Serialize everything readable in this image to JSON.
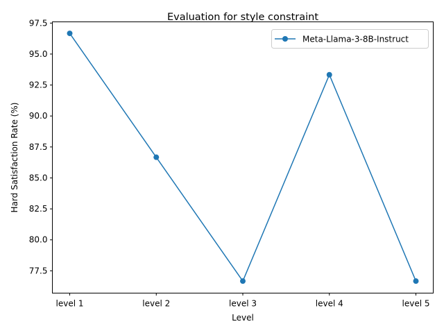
{
  "chart_data": {
    "type": "line",
    "title": "Evaluation for style constraint",
    "xlabel": "Level",
    "ylabel": "Hard Satisfaction Rate (%)",
    "categories": [
      "level 1",
      "level 2",
      "level 3",
      "level 4",
      "level 5"
    ],
    "series": [
      {
        "name": "Meta-Llama-3-8B-Instruct",
        "values": [
          96.67,
          86.67,
          76.67,
          93.33,
          76.67
        ],
        "color": "#1f77b4",
        "marker": "circle"
      }
    ],
    "ylim": [
      75.7,
      97.6
    ],
    "yticks": [
      77.5,
      80.0,
      82.5,
      85.0,
      87.5,
      90.0,
      92.5,
      95.0,
      97.5
    ],
    "ytick_labels": [
      "77.5",
      "80.0",
      "82.5",
      "85.0",
      "87.5",
      "90.0",
      "92.5",
      "95.0",
      "97.5"
    ],
    "grid": false,
    "legend_position": "top-right"
  }
}
